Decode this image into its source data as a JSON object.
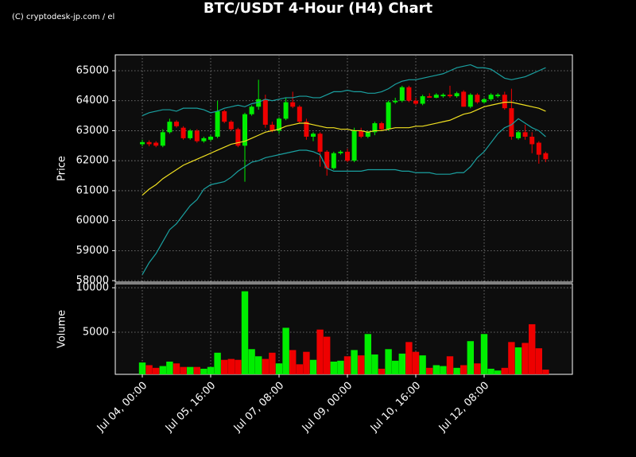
{
  "watermark": "(C) cryptodesk-jp.com / el",
  "chart_data": {
    "type": "candlestick",
    "title": "BTC/USDT 4-Hour (H4) Chart",
    "ylabel": "Price",
    "ylim": [
      57950,
      65530
    ],
    "yticks": [
      58000,
      59000,
      60000,
      61000,
      62000,
      63000,
      64000,
      65000
    ],
    "grid": true,
    "up_color": "#00ee00",
    "down_color": "#ee0000",
    "x": [
      "Jul 04, 00:00",
      null,
      null,
      null,
      null,
      null,
      null,
      null,
      null,
      null,
      "Jul 05, 16:00",
      null,
      null,
      null,
      null,
      null,
      null,
      null,
      null,
      null,
      "Jul 07, 08:00",
      null,
      null,
      null,
      null,
      null,
      null,
      null,
      null,
      null,
      "Jul 09, 00:00",
      null,
      null,
      null,
      null,
      null,
      null,
      null,
      null,
      null,
      "Jul 10, 16:00",
      null,
      null,
      null,
      null,
      null,
      null,
      null,
      null,
      null,
      "Jul 12, 08:00",
      null,
      null,
      null,
      null,
      null,
      null,
      null,
      null,
      null
    ],
    "open": [
      62550,
      62620,
      62600,
      62500,
      62950,
      63300,
      63100,
      62750,
      63000,
      62650,
      62700,
      62800,
      63650,
      63300,
      63050,
      62500,
      63550,
      63800,
      64050,
      63200,
      63000,
      63400,
      63950,
      63800,
      63300,
      62800,
      62900,
      62300,
      61750,
      62250,
      62300,
      62000,
      63000,
      62800,
      62950,
      63250,
      63050,
      63950,
      64000,
      64450,
      64000,
      63900,
      64150,
      64100,
      64150,
      64200,
      64150,
      64300,
      63800,
      64200,
      63950,
      64050,
      64150,
      64200,
      63750,
      62750,
      62950,
      62800,
      62600,
      62250
    ],
    "high": [
      62700,
      62680,
      62650,
      63050,
      63400,
      63350,
      63150,
      63050,
      63050,
      62800,
      62850,
      64000,
      63700,
      63350,
      63100,
      63600,
      63850,
      64700,
      64200,
      63300,
      63450,
      64100,
      64300,
      63850,
      63400,
      62950,
      62950,
      62350,
      62300,
      62350,
      62400,
      63100,
      63100,
      63000,
      63300,
      63300,
      64000,
      64100,
      64500,
      64500,
      64100,
      64200,
      64250,
      64250,
      64250,
      64500,
      64300,
      64350,
      64250,
      64250,
      64100,
      64250,
      64250,
      64300,
      64400,
      63000,
      63200,
      62950,
      62650,
      62300
    ],
    "low": [
      62480,
      62480,
      62450,
      62450,
      62900,
      63100,
      62700,
      62700,
      62600,
      62600,
      62650,
      62750,
      63250,
      63000,
      62450,
      61300,
      63500,
      63700,
      63100,
      62950,
      62900,
      63350,
      63750,
      63250,
      62700,
      62650,
      61800,
      61500,
      61700,
      62200,
      61950,
      61950,
      62750,
      62750,
      62850,
      63000,
      63000,
      63900,
      63950,
      63950,
      63850,
      63850,
      64100,
      64080,
      64100,
      64100,
      64100,
      63800,
      63750,
      63900,
      63900,
      64000,
      64100,
      63700,
      62700,
      62700,
      62700,
      62250,
      61900,
      61950
    ],
    "close": [
      62620,
      62550,
      62500,
      62950,
      63300,
      63150,
      62750,
      63000,
      62650,
      62750,
      62800,
      63650,
      63300,
      63050,
      62500,
      63550,
      63800,
      64050,
      63200,
      63000,
      63400,
      63950,
      63800,
      63300,
      62800,
      62900,
      62300,
      61750,
      62250,
      62300,
      62000,
      63000,
      62800,
      62950,
      63250,
      63050,
      63950,
      64000,
      64450,
      64000,
      63900,
      64150,
      64100,
      64200,
      64200,
      64150,
      64250,
      63800,
      64200,
      63950,
      64050,
      64200,
      64200,
      63750,
      62800,
      62950,
      62800,
      62550,
      62200,
      62050
    ],
    "lines": [
      {
        "color": "#1aa0a0",
        "values": [
          63500,
          63600,
          63650,
          63700,
          63700,
          63650,
          63750,
          63750,
          63750,
          63700,
          63600,
          63650,
          63750,
          63800,
          63850,
          63800,
          63900,
          63950,
          64050,
          64000,
          64050,
          64100,
          64100,
          64150,
          64150,
          64100,
          64100,
          64200,
          64300,
          64300,
          64350,
          64300,
          64300,
          64250,
          64250,
          64300,
          64400,
          64550,
          64650,
          64700,
          64700,
          64750,
          64800,
          64850,
          64900,
          65000,
          65100,
          65150,
          65200,
          65100,
          65100,
          65050,
          64900,
          64750,
          64700,
          64750,
          64800,
          64900,
          65000,
          65100
        ]
      },
      {
        "color": "#f0e020",
        "values": [
          60850,
          61050,
          61200,
          61400,
          61550,
          61700,
          61850,
          61950,
          62050,
          62150,
          62250,
          62350,
          62450,
          62550,
          62600,
          62650,
          62750,
          62850,
          62950,
          63000,
          63050,
          63150,
          63200,
          63250,
          63250,
          63200,
          63150,
          63100,
          63100,
          63050,
          63050,
          63000,
          63000,
          62950,
          63000,
          63000,
          63050,
          63100,
          63100,
          63100,
          63150,
          63150,
          63200,
          63250,
          63300,
          63350,
          63450,
          63550,
          63600,
          63700,
          63800,
          63850,
          63900,
          63950,
          63950,
          63900,
          63850,
          63800,
          63750,
          63650
        ]
      },
      {
        "color": "#1aa0a0",
        "values": [
          58200,
          58600,
          58900,
          59300,
          59700,
          59900,
          60200,
          60500,
          60700,
          61050,
          61200,
          61250,
          61300,
          61450,
          61650,
          61800,
          61950,
          62000,
          62100,
          62150,
          62200,
          62250,
          62300,
          62350,
          62350,
          62300,
          62200,
          61750,
          61650,
          61650,
          61650,
          61650,
          61650,
          61700,
          61700,
          61700,
          61700,
          61700,
          61650,
          61650,
          61600,
          61600,
          61600,
          61550,
          61550,
          61550,
          61600,
          61600,
          61800,
          62100,
          62300,
          62600,
          62900,
          63100,
          63200,
          63400,
          63250,
          63100,
          63000,
          62800
        ]
      }
    ],
    "volume": {
      "ylabel": "Volume",
      "ylim": [
        270,
        10450
      ],
      "yticks": [
        5000,
        10000
      ],
      "values": [
        1600,
        1300,
        1000,
        1200,
        1700,
        1500,
        1100,
        1100,
        1100,
        900,
        1100,
        2700,
        1900,
        2000,
        1900,
        9600,
        3100,
        2300,
        2000,
        2700,
        1500,
        5500,
        3000,
        1400,
        2800,
        1900,
        5300,
        4500,
        1700,
        1800,
        2300,
        3000,
        2400,
        4800,
        2500,
        900,
        3100,
        1800,
        2600,
        3900,
        2800,
        2400,
        1000,
        1300,
        1200,
        2300,
        1000,
        1300,
        4000,
        1500,
        4800,
        900,
        700,
        1000,
        3900,
        3300,
        3800,
        5900,
        3200,
        800
      ]
    }
  }
}
